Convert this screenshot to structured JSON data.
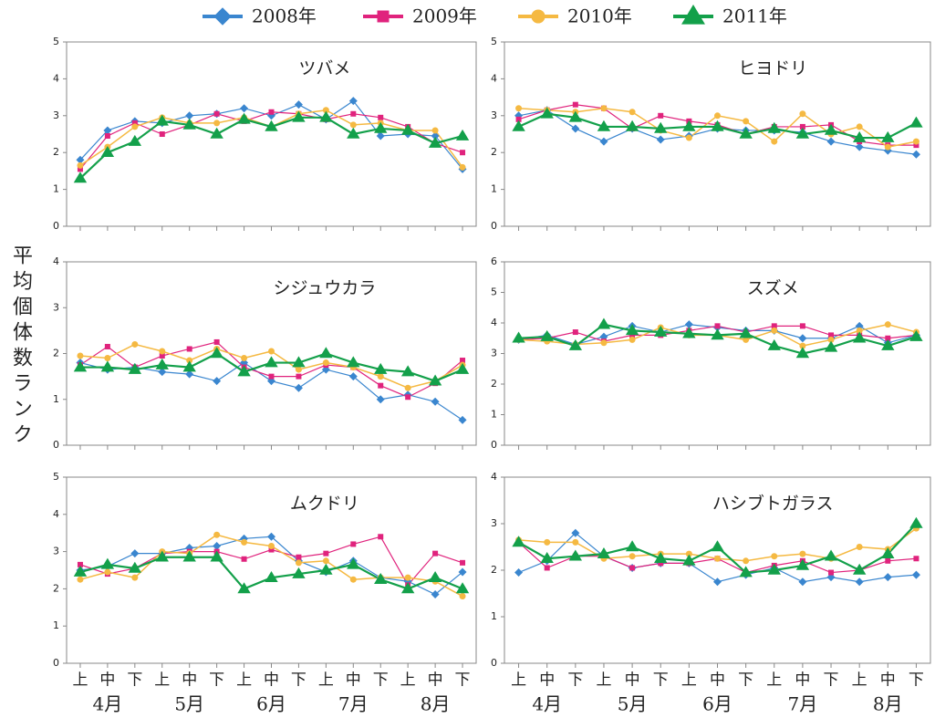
{
  "series": [
    {
      "name": "2008年",
      "color": "#3a86cf",
      "marker": "diamond",
      "width": 1.2
    },
    {
      "name": "2009年",
      "color": "#e0237d",
      "marker": "square",
      "width": 1.2
    },
    {
      "name": "2010年",
      "color": "#f5b942",
      "marker": "circle",
      "width": 1.5
    },
    {
      "name": "2011年",
      "color": "#13a04a",
      "marker": "triangle",
      "width": 2.2
    }
  ],
  "y_axis_label": "平均個体数ランク",
  "x_axis": {
    "categories": [
      "上",
      "中",
      "下",
      "上",
      "中",
      "下",
      "上",
      "中",
      "下",
      "上",
      "中",
      "下",
      "上",
      "中",
      "下"
    ],
    "groups": [
      "4月",
      "5月",
      "6月",
      "7月",
      "8月"
    ]
  },
  "chart_data": [
    {
      "type": "line",
      "title": "ツバメ",
      "ylim": [
        0,
        5
      ],
      "yticks": [
        0,
        1,
        2,
        3,
        4,
        5
      ],
      "series": [
        {
          "values": [
            1.8,
            2.6,
            2.85,
            2.8,
            3.0,
            3.05,
            3.2,
            3.0,
            3.3,
            2.9,
            3.4,
            2.45,
            2.5,
            2.45,
            1.55
          ]
        },
        {
          "values": [
            1.55,
            2.45,
            2.8,
            2.5,
            2.75,
            3.05,
            2.85,
            3.1,
            3.05,
            2.9,
            3.05,
            2.95,
            2.7,
            2.25,
            2.0
          ]
        },
        {
          "values": [
            1.65,
            2.15,
            2.7,
            2.95,
            2.8,
            2.8,
            2.95,
            2.7,
            3.05,
            3.15,
            2.75,
            2.8,
            2.6,
            2.6,
            1.6
          ]
        },
        {
          "values": [
            1.3,
            2.0,
            2.3,
            2.85,
            2.75,
            2.5,
            2.9,
            2.7,
            2.95,
            2.95,
            2.5,
            2.65,
            2.6,
            2.25,
            2.45
          ]
        }
      ]
    },
    {
      "type": "line",
      "title": "ヒヨドリ",
      "ylim": [
        0,
        5
      ],
      "yticks": [
        0,
        1,
        2,
        3,
        4,
        5
      ],
      "series": [
        {
          "values": [
            3.0,
            3.15,
            2.65,
            2.3,
            2.65,
            2.35,
            2.45,
            2.65,
            2.6,
            2.6,
            2.55,
            2.3,
            2.15,
            2.05,
            1.95
          ]
        },
        {
          "values": [
            2.9,
            3.15,
            3.3,
            3.2,
            2.65,
            3.0,
            2.85,
            2.75,
            2.5,
            2.7,
            2.7,
            2.75,
            2.3,
            2.2,
            2.2
          ]
        },
        {
          "values": [
            3.2,
            3.15,
            3.1,
            3.2,
            3.1,
            2.6,
            2.4,
            3.0,
            2.85,
            2.3,
            3.05,
            2.5,
            2.7,
            2.15,
            2.3
          ]
        },
        {
          "values": [
            2.7,
            3.05,
            2.95,
            2.7,
            2.7,
            2.65,
            2.7,
            2.7,
            2.5,
            2.65,
            2.5,
            2.6,
            2.4,
            2.4,
            2.8
          ]
        }
      ]
    },
    {
      "type": "line",
      "title": "シジュウカラ",
      "ylim": [
        0,
        4
      ],
      "yticks": [
        0,
        1,
        2,
        3,
        4
      ],
      "series": [
        {
          "values": [
            1.8,
            1.65,
            1.7,
            1.6,
            1.55,
            1.4,
            1.8,
            1.4,
            1.25,
            1.65,
            1.5,
            1.0,
            1.1,
            0.95,
            0.55
          ]
        },
        {
          "values": [
            1.75,
            2.15,
            1.7,
            1.95,
            2.1,
            2.25,
            1.7,
            1.5,
            1.5,
            1.75,
            1.7,
            1.3,
            1.05,
            1.35,
            1.85
          ]
        },
        {
          "values": [
            1.95,
            1.9,
            2.2,
            2.05,
            1.85,
            2.1,
            1.9,
            2.05,
            1.65,
            1.8,
            1.7,
            1.5,
            1.25,
            1.4,
            1.75
          ]
        },
        {
          "values": [
            1.7,
            1.7,
            1.65,
            1.75,
            1.7,
            2.0,
            1.6,
            1.8,
            1.8,
            2.0,
            1.8,
            1.65,
            1.6,
            1.4,
            1.65
          ]
        }
      ]
    },
    {
      "type": "line",
      "title": "スズメ",
      "ylim": [
        0,
        6
      ],
      "yticks": [
        0,
        1,
        2,
        3,
        4,
        5,
        6
      ],
      "series": [
        {
          "values": [
            3.45,
            3.6,
            3.3,
            3.55,
            3.9,
            3.7,
            3.95,
            3.85,
            3.75,
            3.75,
            3.5,
            3.5,
            3.9,
            3.35,
            3.6
          ]
        },
        {
          "values": [
            3.45,
            3.5,
            3.7,
            3.4,
            3.6,
            3.6,
            3.75,
            3.9,
            3.7,
            3.9,
            3.9,
            3.6,
            3.6,
            3.5,
            3.6
          ]
        },
        {
          "values": [
            3.45,
            3.4,
            3.3,
            3.35,
            3.45,
            3.85,
            3.6,
            3.6,
            3.45,
            3.75,
            3.25,
            3.45,
            3.75,
            3.95,
            3.7
          ]
        },
        {
          "values": [
            3.5,
            3.55,
            3.25,
            3.95,
            3.75,
            3.7,
            3.65,
            3.6,
            3.65,
            3.25,
            3.0,
            3.2,
            3.5,
            3.25,
            3.55
          ]
        }
      ]
    },
    {
      "type": "line",
      "title": "ムクドリ",
      "ylim": [
        0,
        5
      ],
      "yticks": [
        0,
        1,
        2,
        3,
        4,
        5
      ],
      "series": [
        {
          "values": [
            2.5,
            2.6,
            2.95,
            2.95,
            3.1,
            3.15,
            3.35,
            3.4,
            2.75,
            2.45,
            2.75,
            2.3,
            2.2,
            1.85,
            2.45
          ]
        },
        {
          "values": [
            2.65,
            2.4,
            2.55,
            2.95,
            3.0,
            3.0,
            2.8,
            3.05,
            2.85,
            2.95,
            3.2,
            3.4,
            2.1,
            2.95,
            2.7
          ]
        },
        {
          "values": [
            2.25,
            2.45,
            2.3,
            3.0,
            2.95,
            3.45,
            3.25,
            3.15,
            2.7,
            2.75,
            2.25,
            2.3,
            2.3,
            2.2,
            1.8
          ]
        },
        {
          "values": [
            2.45,
            2.65,
            2.55,
            2.85,
            2.85,
            2.85,
            2.0,
            2.3,
            2.4,
            2.5,
            2.65,
            2.25,
            2.0,
            2.3,
            2.0
          ]
        }
      ]
    },
    {
      "type": "line",
      "title": "ハシブトガラス",
      "ylim": [
        0,
        4
      ],
      "yticks": [
        0,
        1,
        2,
        3,
        4
      ],
      "series": [
        {
          "values": [
            1.95,
            2.2,
            2.8,
            2.3,
            2.05,
            2.15,
            2.15,
            1.75,
            1.9,
            2.05,
            1.75,
            1.85,
            1.75,
            1.85,
            1.9
          ]
        },
        {
          "values": [
            2.6,
            2.05,
            2.3,
            2.3,
            2.05,
            2.15,
            2.15,
            2.25,
            1.95,
            2.1,
            2.2,
            1.95,
            2.0,
            2.2,
            2.25
          ]
        },
        {
          "values": [
            2.65,
            2.6,
            2.6,
            2.25,
            2.3,
            2.35,
            2.35,
            2.25,
            2.2,
            2.3,
            2.35,
            2.25,
            2.5,
            2.45,
            2.9
          ]
        },
        {
          "values": [
            2.6,
            2.25,
            2.3,
            2.35,
            2.5,
            2.25,
            2.2,
            2.5,
            1.95,
            2.0,
            2.1,
            2.3,
            2.0,
            2.35,
            3.0
          ]
        }
      ]
    }
  ]
}
